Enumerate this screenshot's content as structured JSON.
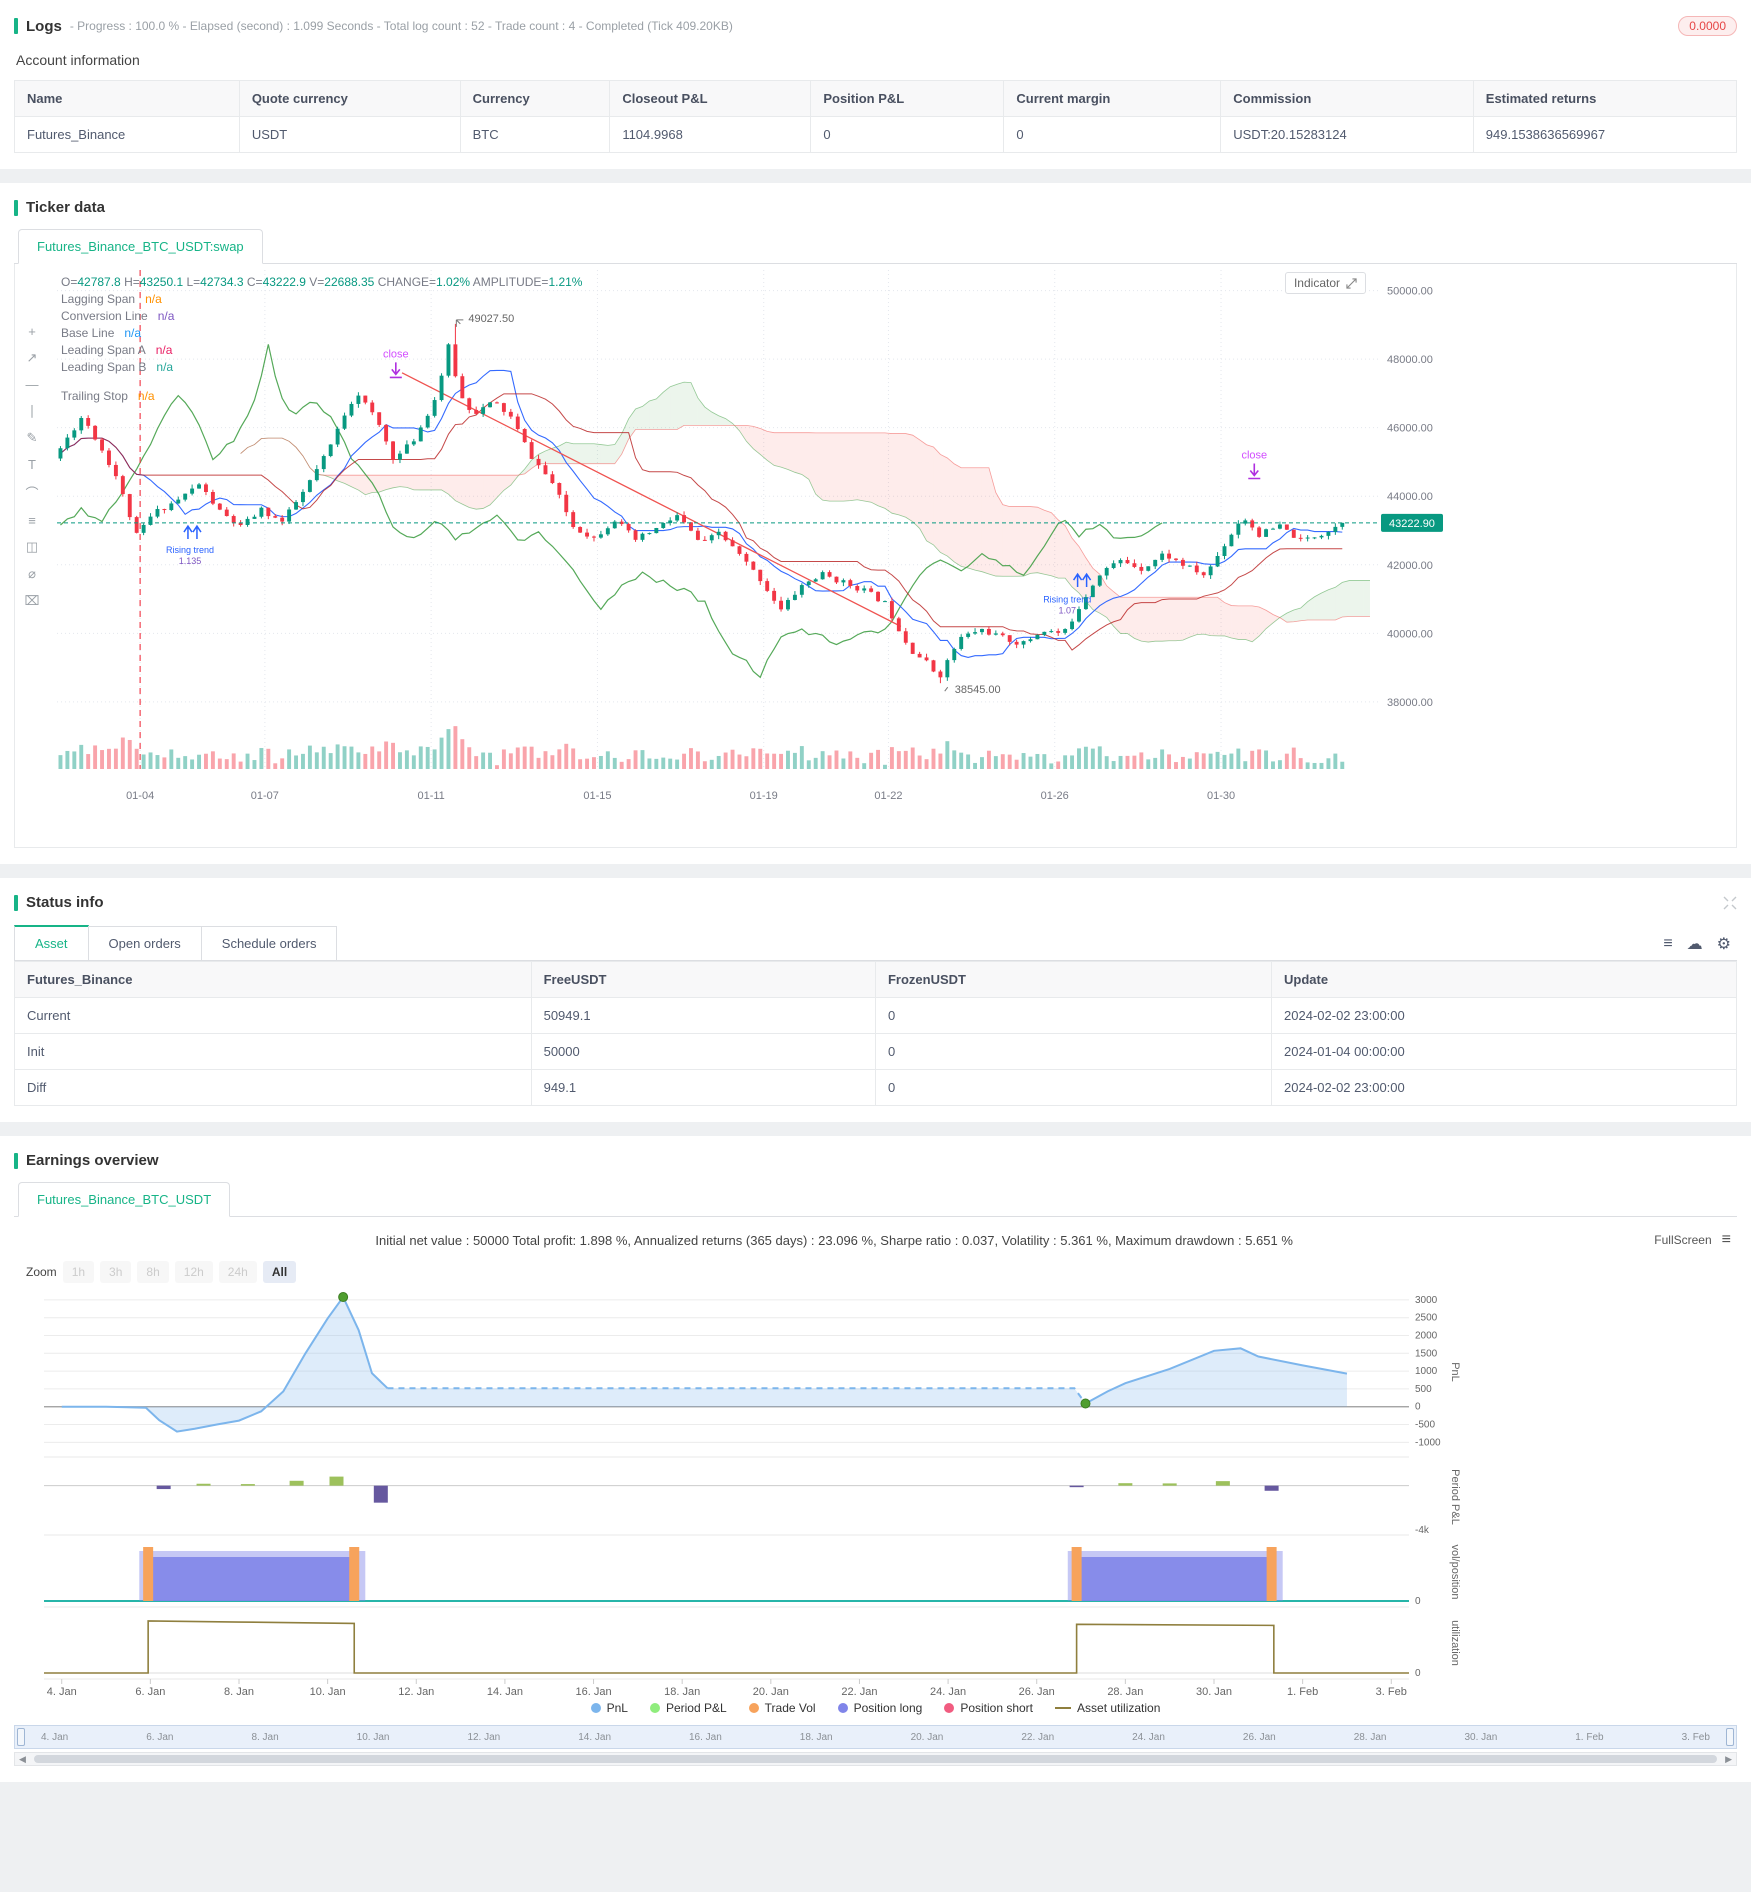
{
  "colors": {
    "accent": "#17b487",
    "up": "#089981",
    "down": "#f23645",
    "badge_red": "#e64545"
  },
  "logs": {
    "title": "Logs",
    "meta": "- Progress : 100.0 % - Elapsed (second) : 1.099  Seconds - Total log count : 52 - Trade count : 4 - Completed (Tick 409.20KB)",
    "badge": "0.0000"
  },
  "account": {
    "title": "Account information",
    "columns": [
      "Name",
      "Quote currency",
      "Currency",
      "Closeout P&L",
      "Position P&L",
      "Current margin",
      "Commission",
      "Estimated returns"
    ],
    "rows": [
      [
        "Futures_Binance",
        "USDT",
        "BTC",
        "1104.9968",
        "0",
        "0",
        "USDT:20.15283124",
        "949.1538636569967"
      ]
    ]
  },
  "ticker": {
    "section_title": "Ticker data",
    "tab": "Futures_Binance_BTC_USDT:swap",
    "indicator_label": "Indicator",
    "tools": [
      {
        "name": "crosshair",
        "glyph": "+"
      },
      {
        "name": "trendline",
        "glyph": "↗"
      },
      {
        "name": "hline",
        "glyph": "―"
      },
      {
        "name": "vline",
        "glyph": "∣"
      },
      {
        "name": "brush",
        "glyph": "✎"
      },
      {
        "name": "text",
        "glyph": "T"
      },
      {
        "name": "arc",
        "glyph": "⌒"
      },
      {
        "name": "measure",
        "glyph": "≡"
      },
      {
        "name": "pattern",
        "glyph": "◫"
      },
      {
        "name": "circle",
        "glyph": "⌀"
      },
      {
        "name": "delete",
        "glyph": "⌧"
      }
    ],
    "legend": {
      "ohlc": [
        {
          "k": "O=",
          "v": "42787.8"
        },
        {
          "k": "H=",
          "v": "43250.1"
        },
        {
          "k": "L=",
          "v": "42734.3"
        },
        {
          "k": "C=",
          "v": "43222.9"
        },
        {
          "k": "V=",
          "v": "22688.35"
        },
        {
          "k": "CHANGE=",
          "v": "1.02%"
        },
        {
          "k": "AMPLITUDE=",
          "v": "1.21%"
        }
      ],
      "rows": [
        {
          "label": "Lagging Span",
          "value": "n/a",
          "color": "#ff9100"
        },
        {
          "label": "Conversion Line",
          "value": "n/a",
          "color": "#7e57c2"
        },
        {
          "label": "Base Line",
          "value": "n/a",
          "color": "#2196f3"
        },
        {
          "label": "Leading Span A",
          "value": "n/a",
          "color": "#e91e63"
        },
        {
          "label": "Leading Span B",
          "value": "n/a",
          "color": "#26a69a"
        },
        {
          "label": "Trailing Stop",
          "value": "n/a",
          "color": "#ff9100"
        }
      ]
    }
  },
  "status": {
    "section_title": "Status info",
    "tabs": [
      "Asset",
      "Open orders",
      "Schedule orders"
    ],
    "active_tab": "Asset",
    "columns": [
      "Futures_Binance",
      "FreeUSDT",
      "FrozenUSDT",
      "Update"
    ],
    "rows": [
      [
        "Current",
        "50949.1",
        "0",
        "2024-02-02 23:00:00"
      ],
      [
        "Init",
        "50000",
        "0",
        "2024-01-04 00:00:00"
      ],
      [
        "Diff",
        "949.1",
        "0",
        "2024-02-02 23:00:00"
      ]
    ]
  },
  "earnings": {
    "section_title": "Earnings overview",
    "tab": "Futures_Binance_BTC_USDT",
    "stats": "Initial net value : 50000 Total profit: 1.898 %, Annualized returns (365 days) : 23.096 %, Sharpe ratio : 0.037, Volatility : 5.361 %, Maximum drawdown : 5.651 %",
    "fullscreen_label": "FullScreen",
    "zoom_label": "Zoom",
    "zoom_options": [
      "1h",
      "3h",
      "8h",
      "12h",
      "24h",
      "All"
    ],
    "zoom_active": "All",
    "legend": [
      {
        "name": "PnL",
        "color": "#7cb5ec",
        "marker": "dot"
      },
      {
        "name": "Period P&L",
        "color": "#90ed7d",
        "marker": "dot"
      },
      {
        "name": "Trade Vol",
        "color": "#f7a35c",
        "marker": "dot"
      },
      {
        "name": "Position long",
        "color": "#8085e9",
        "marker": "dot"
      },
      {
        "name": "Position short",
        "color": "#f15c80",
        "marker": "dot"
      },
      {
        "name": "Asset utilization",
        "color": "#8f7f3e",
        "marker": "line"
      }
    ]
  },
  "chart_data": [
    {
      "type": "candlestick",
      "title": "Futures_Binance_BTC_USDT:swap",
      "domain_days": [
        0,
        31.8
      ],
      "candles_per_day": 6,
      "seed": 11,
      "price_anchors": [
        [
          0,
          45100
        ],
        [
          0.7,
          46350
        ],
        [
          1.1,
          45500
        ],
        [
          1.5,
          44600
        ],
        [
          2.0,
          42850
        ],
        [
          2.4,
          43500
        ],
        [
          3.0,
          43900
        ],
        [
          3.5,
          44350
        ],
        [
          4.0,
          43550
        ],
        [
          4.5,
          43100
        ],
        [
          5.0,
          43600
        ],
        [
          5.5,
          43250
        ],
        [
          6.0,
          44100
        ],
        [
          6.6,
          45300
        ],
        [
          7.0,
          46400
        ],
        [
          7.3,
          47050
        ],
        [
          7.8,
          46150
        ],
        [
          8.2,
          45050
        ],
        [
          8.7,
          45700
        ],
        [
          9.2,
          46900
        ],
        [
          9.5,
          48350
        ],
        [
          9.8,
          46900
        ],
        [
          10.1,
          46420
        ],
        [
          10.6,
          46750
        ],
        [
          11.0,
          46300
        ],
        [
          11.5,
          45150
        ],
        [
          12.0,
          44380
        ],
        [
          12.5,
          43120
        ],
        [
          13.0,
          42780
        ],
        [
          13.5,
          43320
        ],
        [
          14.0,
          42720
        ],
        [
          14.5,
          43050
        ],
        [
          15.0,
          43430
        ],
        [
          15.6,
          42580
        ],
        [
          16.0,
          42950
        ],
        [
          16.5,
          42280
        ],
        [
          17.0,
          41580
        ],
        [
          17.5,
          40680
        ],
        [
          18.0,
          41400
        ],
        [
          18.5,
          41720
        ],
        [
          19.0,
          41480
        ],
        [
          19.5,
          41260
        ],
        [
          20.0,
          40880
        ],
        [
          20.6,
          39550
        ],
        [
          21.0,
          39150
        ],
        [
          21.3,
          38720
        ],
        [
          21.8,
          39850
        ],
        [
          22.3,
          40120
        ],
        [
          22.8,
          39880
        ],
        [
          23.3,
          39680
        ],
        [
          23.8,
          40090
        ],
        [
          24.3,
          39980
        ],
        [
          24.8,
          41050
        ],
        [
          25.2,
          41820
        ],
        [
          25.7,
          42130
        ],
        [
          26.2,
          41880
        ],
        [
          26.7,
          42320
        ],
        [
          27.2,
          41980
        ],
        [
          27.7,
          41680
        ],
        [
          28.2,
          42650
        ],
        [
          28.6,
          43420
        ],
        [
          29.0,
          42880
        ],
        [
          29.5,
          43120
        ],
        [
          30.0,
          42700
        ],
        [
          30.6,
          42950
        ],
        [
          31.0,
          43222.9
        ]
      ],
      "forced_high": {
        "day": 9.55,
        "price": 49027.5
      },
      "forced_low": {
        "day": 21.3,
        "price": 38545
      },
      "last_close": 43222.9,
      "y_ticks": [
        {
          "p": 50000,
          "label": "50000.00"
        },
        {
          "p": 48000,
          "label": "48000.00"
        },
        {
          "p": 46000,
          "label": "46000.00"
        },
        {
          "p": 44000,
          "label": "44000.00"
        },
        {
          "p": 42000,
          "label": "42000.00"
        },
        {
          "p": 40000,
          "label": "40000.00"
        },
        {
          "p": 38000,
          "label": "38000.00"
        }
      ],
      "x_ticks": [
        {
          "day": 2,
          "label": "01-04"
        },
        {
          "day": 5,
          "label": "01-07"
        },
        {
          "day": 9,
          "label": "01-11"
        },
        {
          "day": 13,
          "label": "01-15"
        },
        {
          "day": 17,
          "label": "01-19"
        },
        {
          "day": 20,
          "label": "01-22"
        },
        {
          "day": 24,
          "label": "01-26"
        },
        {
          "day": 28,
          "label": "01-30"
        }
      ],
      "current_price": {
        "p": 43222.9,
        "label": "43222.90"
      },
      "backtest_start_day": 2,
      "trailing_stop_segment": [
        [
          8.3,
          47600
        ],
        [
          20.3,
          40200
        ]
      ],
      "annotations": [
        {
          "type": "close",
          "day": 8.15,
          "price": 47350,
          "label": "close"
        },
        {
          "type": "high-label",
          "day": 9.75,
          "price": 49027.5,
          "label": "49027.50"
        },
        {
          "type": "low-label",
          "day": 21.45,
          "price": 38545,
          "label": "38545.00"
        },
        {
          "type": "close",
          "day": 28.8,
          "price": 44400,
          "label": "close"
        },
        {
          "type": "buy-arrows",
          "day": 3.15,
          "price": 42750
        },
        {
          "type": "trend-note",
          "day": 3.2,
          "price": 42350,
          "label": "Rising trend",
          "value": "1.135"
        },
        {
          "type": "buy-arrows",
          "day": 24.55,
          "price": 41350
        },
        {
          "type": "trend-note",
          "day": 24.3,
          "price": 40900,
          "label": "Rising trend",
          "value": "1.07"
        }
      ]
    },
    {
      "type": "multi-panel-timeseries",
      "x_domain": [
        3.6,
        34.4
      ],
      "x_ticks": [
        {
          "day": 4,
          "label": "4. Jan"
        },
        {
          "day": 6,
          "label": "6. Jan"
        },
        {
          "day": 8,
          "label": "8. Jan"
        },
        {
          "day": 10,
          "label": "10. Jan"
        },
        {
          "day": 12,
          "label": "12. Jan"
        },
        {
          "day": 14,
          "label": "14. Jan"
        },
        {
          "day": 16,
          "label": "16. Jan"
        },
        {
          "day": 18,
          "label": "18. Jan"
        },
        {
          "day": 20,
          "label": "20. Jan"
        },
        {
          "day": 22,
          "label": "22. Jan"
        },
        {
          "day": 24,
          "label": "24. Jan"
        },
        {
          "day": 26,
          "label": "26. Jan"
        },
        {
          "day": 28,
          "label": "28. Jan"
        },
        {
          "day": 30,
          "label": "30. Jan"
        },
        {
          "day": 32,
          "label": "1. Feb"
        },
        {
          "day": 34,
          "label": "3. Feb"
        }
      ],
      "axis_titles": [
        "PnL",
        "Period P&L",
        "vol/position",
        "utilization"
      ],
      "pnl": {
        "y_domain": [
          -1300,
          3250
        ],
        "y_ticks": [
          3000,
          2500,
          2000,
          1500,
          1000,
          500,
          0,
          -500,
          -1000
        ],
        "solid1": [
          [
            4,
            0
          ],
          [
            5,
            0
          ],
          [
            5.9,
            -30
          ],
          [
            6.2,
            -380
          ],
          [
            6.6,
            -700
          ],
          [
            7,
            -620
          ],
          [
            7.5,
            -500
          ],
          [
            8,
            -390
          ],
          [
            8.5,
            -130
          ],
          [
            9,
            430
          ],
          [
            9.5,
            1500
          ],
          [
            10,
            2480
          ],
          [
            10.35,
            3080
          ],
          [
            10.7,
            2150
          ],
          [
            11,
            940
          ],
          [
            11.35,
            520
          ]
        ],
        "dashed": [
          [
            11.35,
            520
          ],
          [
            26.85,
            520
          ],
          [
            27.1,
            90
          ]
        ],
        "solid2": [
          [
            27.1,
            90
          ],
          [
            27.6,
            430
          ],
          [
            28,
            660
          ],
          [
            29,
            1060
          ],
          [
            30,
            1570
          ],
          [
            30.6,
            1640
          ],
          [
            31,
            1410
          ],
          [
            32,
            1160
          ],
          [
            33,
            930
          ]
        ],
        "markers": [
          [
            10.35,
            3080
          ],
          [
            27.1,
            90
          ]
        ]
      },
      "period_pnl": {
        "y_domain": [
          -4000,
          2000
        ],
        "y_tick_label": "-4k",
        "bars": [
          [
            6.3,
            -300
          ],
          [
            7.2,
            170
          ],
          [
            8.2,
            140
          ],
          [
            9.3,
            430
          ],
          [
            10.2,
            800
          ],
          [
            11.2,
            -1500
          ],
          [
            26.9,
            -70
          ],
          [
            28,
            220
          ],
          [
            29,
            200
          ],
          [
            30.2,
            400
          ],
          [
            31.3,
            -450
          ]
        ],
        "pos_color": "#9dc15c",
        "neg_color": "#66589f"
      },
      "position": {
        "y_tick_label": "0",
        "blocks": [
          {
            "from": 5.9,
            "to": 10.7
          },
          {
            "from": 26.85,
            "to": 31.4
          }
        ],
        "vol_bars": [
          5.95,
          10.6,
          26.9,
          31.3
        ],
        "long_color": "#8085e9",
        "vol_color": "#f7a35c",
        "baseline_color": "#27b5a9"
      },
      "utilization": {
        "y_tick_label": "0",
        "steps": [
          [
            3.6,
            0
          ],
          [
            5.95,
            0
          ],
          [
            5.95,
            0.93
          ],
          [
            8,
            0.91
          ],
          [
            10.6,
            0.885
          ],
          [
            10.6,
            0
          ],
          [
            26.9,
            0
          ],
          [
            26.9,
            0.87
          ],
          [
            31.35,
            0.85
          ],
          [
            31.35,
            0
          ],
          [
            34.4,
            0
          ]
        ],
        "color": "#8f7f3e"
      }
    }
  ]
}
